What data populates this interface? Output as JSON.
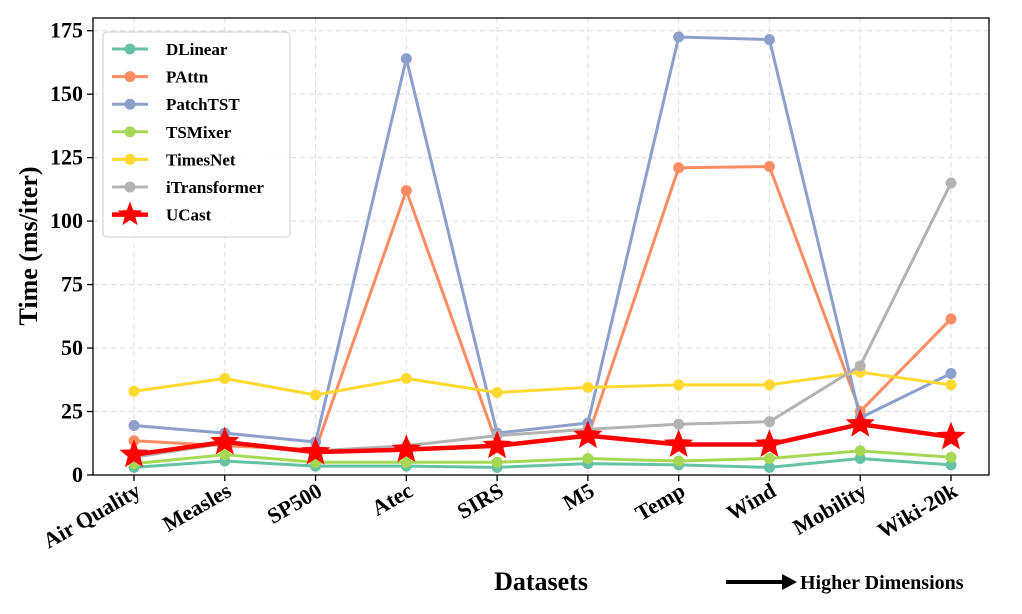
{
  "chart_data": {
    "type": "line",
    "xlabel": "Datasets",
    "ylabel": "Time (ms/iter)",
    "ylim": [
      0,
      180
    ],
    "yticks": [
      0,
      25,
      50,
      75,
      100,
      125,
      150,
      175
    ],
    "grid": true,
    "legend_position": "top-left",
    "annotation": "Higher Dimensions",
    "categories": [
      "Air Quality",
      "Measles",
      "SP500",
      "Atec",
      "SIRS",
      "M5",
      "Temp",
      "Wind",
      "Mobility",
      "Wiki-20k"
    ],
    "series": [
      {
        "name": "DLinear",
        "color": "#66c2a5",
        "marker": "circle",
        "values": [
          3.0,
          5.5,
          3.5,
          3.5,
          3.0,
          4.5,
          4.0,
          3.0,
          6.5,
          4.0
        ]
      },
      {
        "name": "PAttn",
        "color": "#fc8d62",
        "marker": "circle",
        "values": [
          13.5,
          11.5,
          10.0,
          112.0,
          12.0,
          15.0,
          121.0,
          121.5,
          25.0,
          61.5
        ]
      },
      {
        "name": "PatchTST",
        "color": "#8da0cb",
        "marker": "circle",
        "values": [
          19.5,
          16.5,
          13.0,
          164.0,
          16.5,
          20.5,
          172.5,
          171.5,
          22.5,
          40.0
        ]
      },
      {
        "name": "TSMixer",
        "color": "#a6d854",
        "marker": "circle",
        "values": [
          4.5,
          8.0,
          5.0,
          5.0,
          5.0,
          6.5,
          5.5,
          6.5,
          9.5,
          7.0
        ]
      },
      {
        "name": "TimesNet",
        "color": "#ffd92f",
        "marker": "circle",
        "values": [
          33.0,
          38.0,
          31.5,
          38.0,
          32.5,
          34.5,
          35.5,
          35.5,
          40.5,
          35.5
        ]
      },
      {
        "name": "iTransformer",
        "color": "#b3b3b3",
        "marker": "circle",
        "values": [
          7.0,
          12.5,
          9.5,
          11.5,
          15.5,
          18.0,
          20.0,
          21.0,
          43.0,
          115.0
        ]
      },
      {
        "name": "UCast",
        "color": "#ff0000",
        "marker": "star",
        "values": [
          8.0,
          13.0,
          9.0,
          10.0,
          11.5,
          15.5,
          12.0,
          12.0,
          20.0,
          15.0
        ]
      }
    ]
  }
}
